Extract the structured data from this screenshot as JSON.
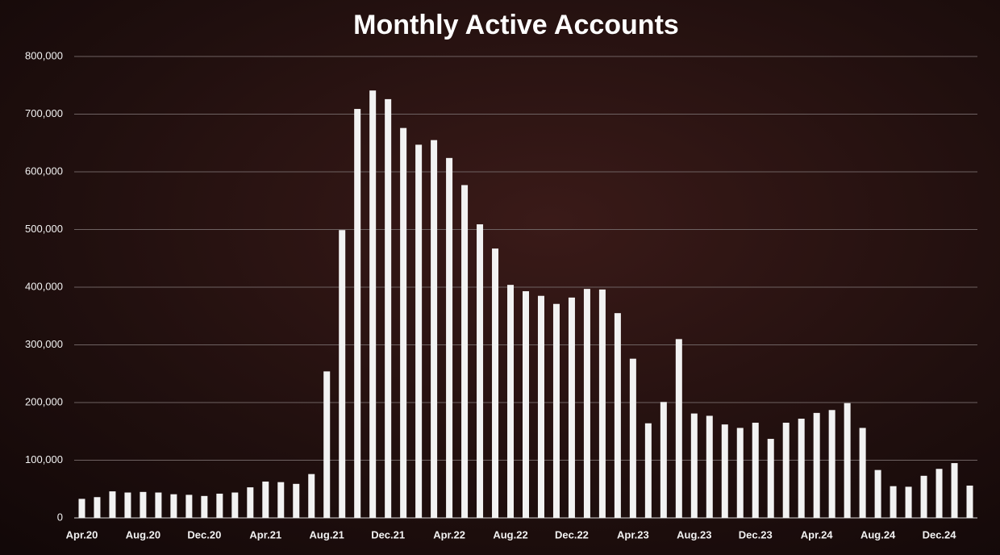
{
  "chart_data": {
    "type": "bar",
    "title": "Monthly Active Accounts",
    "categories": [
      "Apr.20",
      null,
      null,
      null,
      "Aug.20",
      null,
      null,
      null,
      "Dec.20",
      null,
      null,
      null,
      "Apr.21",
      null,
      null,
      null,
      "Aug.21",
      null,
      null,
      null,
      "Dec.21",
      null,
      null,
      null,
      "Apr.22",
      null,
      null,
      null,
      "Aug.22",
      null,
      null,
      null,
      "Dec.22",
      null,
      null,
      null,
      "Apr.23",
      null,
      null,
      null,
      "Aug.23",
      null,
      null,
      null,
      "Dec.23",
      null,
      null,
      null,
      "Apr.24",
      null,
      null,
      null,
      "Aug.24",
      null,
      null,
      null,
      "Dec.24",
      null,
      null
    ],
    "values": [
      33000,
      36000,
      46000,
      44000,
      45000,
      44000,
      41000,
      40000,
      38000,
      42000,
      44000,
      53000,
      63000,
      62000,
      59000,
      76000,
      254000,
      499000,
      709000,
      741000,
      726000,
      676000,
      647000,
      655000,
      624000,
      577000,
      509000,
      467000,
      404000,
      393000,
      385000,
      371000,
      382000,
      397000,
      396000,
      355000,
      276000,
      164000,
      201000,
      310000,
      181000,
      177000,
      162000,
      156000,
      165000,
      137000,
      165000,
      172000,
      182000,
      187000,
      199000,
      156000,
      83000,
      55000,
      54000,
      73000,
      85000,
      95000,
      56000
    ],
    "color": "#f2f2f2",
    "ylim": [
      0,
      800000
    ],
    "yticks": [
      0,
      {
        "value": 100000,
        "label": "100,000"
      },
      {
        "value": 200000,
        "label": "200,000"
      },
      {
        "value": 300000,
        "label": "300,000"
      },
      {
        "value": 400000,
        "label": "400,000"
      },
      {
        "value": 500000,
        "label": "500,000"
      },
      {
        "value": 600000,
        "label": "600,000"
      },
      {
        "value": 700000,
        "label": "700,000"
      },
      {
        "value": 800000,
        "label": "800,000"
      }
    ],
    "grid": true
  }
}
